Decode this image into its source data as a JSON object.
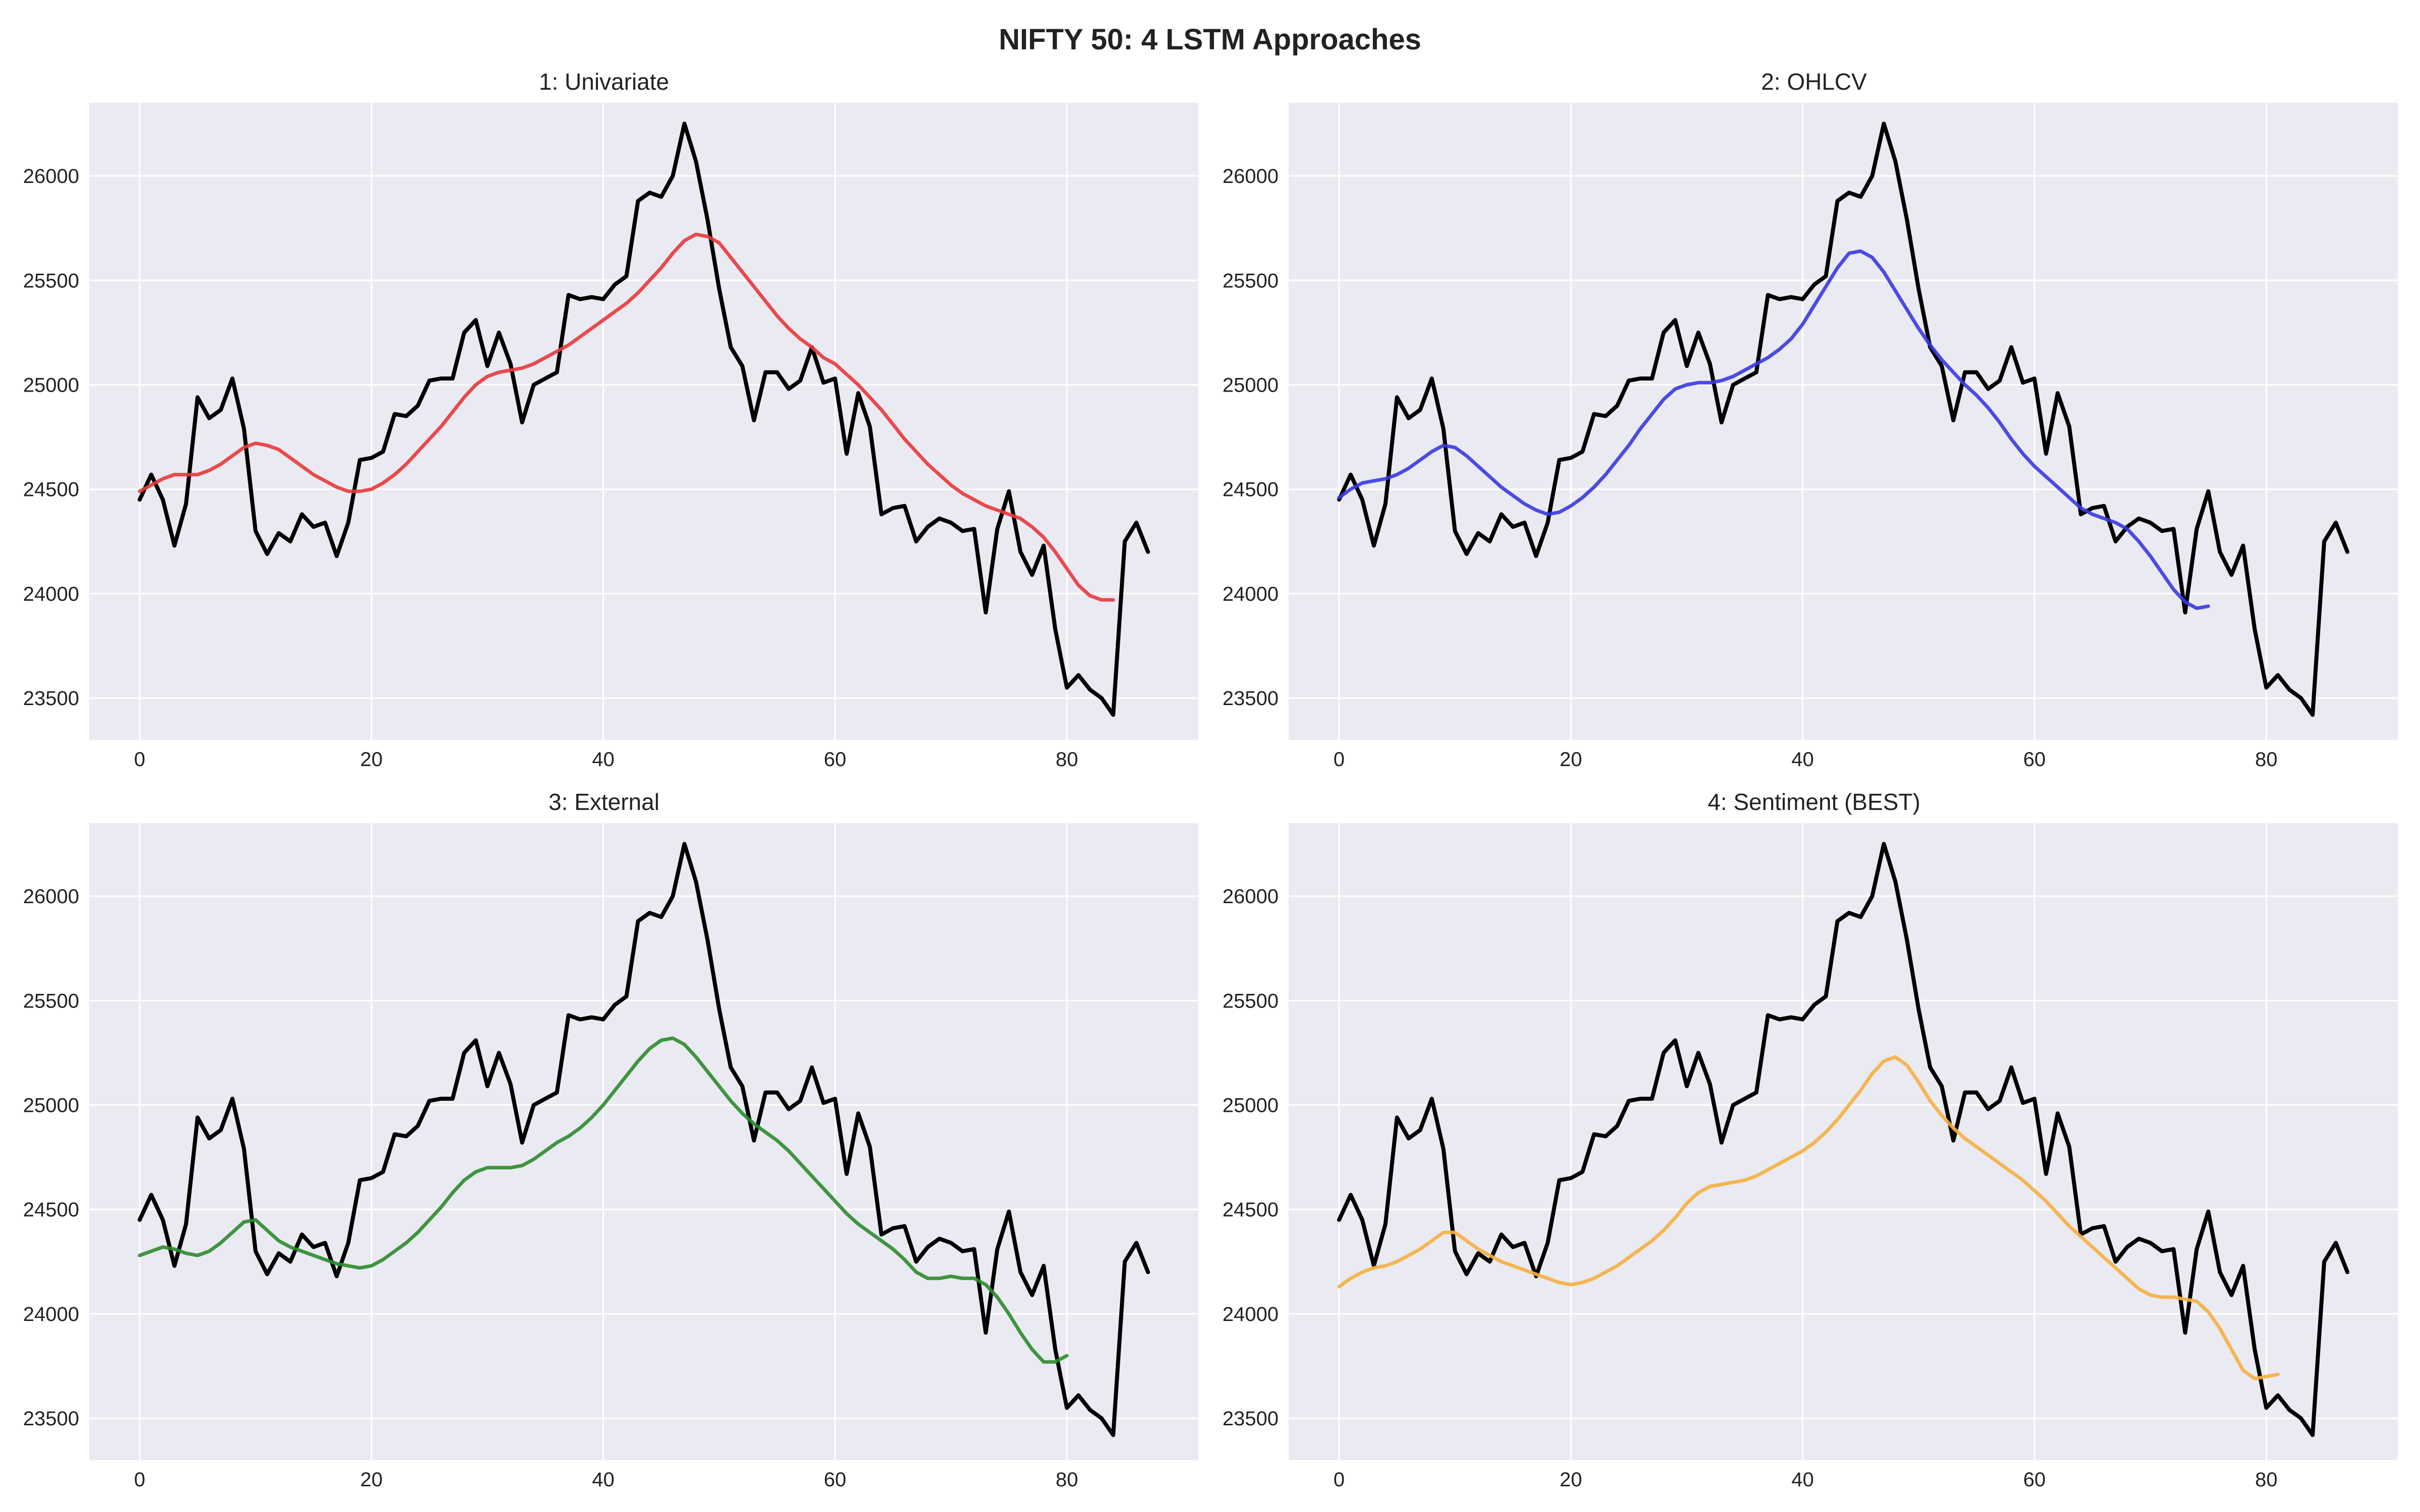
{
  "figure": {
    "title": "NIFTY 50: 4 LSTM Approaches"
  },
  "colors": {
    "panel_bg": "#eaeaf2",
    "grid": "#ffffff",
    "actual": "#000000",
    "best_title": "#008000"
  },
  "chart_data": [
    {
      "type": "line",
      "title": "1: Univariate",
      "title_color": "#222222",
      "xlabel": "",
      "ylabel": "",
      "xlim": [
        -4.35,
        91.35
      ],
      "ylim": [
        23300,
        26350
      ],
      "xticks": [
        0,
        20,
        40,
        60,
        80
      ],
      "yticks": [
        23500,
        24000,
        24500,
        25000,
        25500,
        26000
      ],
      "grid": true,
      "series": [
        {
          "role": "actual",
          "color": "#000000",
          "values": [
            24450,
            24570,
            24450,
            24230,
            24430,
            24940,
            24840,
            24880,
            25030,
            24790,
            24300,
            24190,
            24290,
            24250,
            24380,
            24320,
            24340,
            24180,
            24340,
            24640,
            24650,
            24680,
            24860,
            24850,
            24900,
            25020,
            25030,
            25030,
            25250,
            25310,
            25090,
            25250,
            25100,
            24820,
            25000,
            25030,
            25060,
            25430,
            25410,
            25420,
            25410,
            25480,
            25520,
            25880,
            25920,
            25900,
            26000,
            26250,
            26070,
            25790,
            25460,
            25180,
            25090,
            24830,
            25060,
            25060,
            24980,
            25020,
            25180,
            25010,
            25030,
            24670,
            24960,
            24800,
            24380,
            24410,
            24420,
            24250,
            24320,
            24360,
            24340,
            24300,
            24310,
            23910,
            24310,
            24490,
            24200,
            24090,
            24230,
            23830,
            23550,
            23610,
            23540,
            23500,
            23420,
            24250,
            24340,
            24200
          ]
        },
        {
          "role": "prediction",
          "color": "#e8393b",
          "values": [
            24490,
            24520,
            24550,
            24570,
            24570,
            24570,
            24590,
            24620,
            24660,
            24700,
            24720,
            24710,
            24690,
            24650,
            24610,
            24570,
            24540,
            24510,
            24490,
            24490,
            24500,
            24530,
            24570,
            24620,
            24680,
            24740,
            24800,
            24870,
            24940,
            25000,
            25040,
            25060,
            25070,
            25080,
            25100,
            25130,
            25160,
            25190,
            25230,
            25270,
            25310,
            25350,
            25390,
            25440,
            25500,
            25560,
            25630,
            25690,
            25720,
            25710,
            25680,
            25610,
            25540,
            25470,
            25400,
            25330,
            25270,
            25220,
            25180,
            25130,
            25100,
            25050,
            25000,
            24940,
            24880,
            24810,
            24740,
            24680,
            24620,
            24570,
            24520,
            24480,
            24450,
            24420,
            24400,
            24380,
            24360,
            24320,
            24270,
            24200,
            24120,
            24040,
            23990,
            23970,
            23970
          ]
        }
      ]
    },
    {
      "type": "line",
      "title": "2: OHLCV",
      "title_color": "#222222",
      "xlabel": "",
      "ylabel": "",
      "xlim": [
        -4.35,
        91.35
      ],
      "ylim": [
        23300,
        26350
      ],
      "xticks": [
        0,
        20,
        40,
        60,
        80
      ],
      "yticks": [
        23500,
        24000,
        24500,
        25000,
        25500,
        26000
      ],
      "grid": true,
      "series": [
        {
          "role": "actual",
          "color": "#000000",
          "values": [
            24450,
            24570,
            24450,
            24230,
            24430,
            24940,
            24840,
            24880,
            25030,
            24790,
            24300,
            24190,
            24290,
            24250,
            24380,
            24320,
            24340,
            24180,
            24340,
            24640,
            24650,
            24680,
            24860,
            24850,
            24900,
            25020,
            25030,
            25030,
            25250,
            25310,
            25090,
            25250,
            25100,
            24820,
            25000,
            25030,
            25060,
            25430,
            25410,
            25420,
            25410,
            25480,
            25520,
            25880,
            25920,
            25900,
            26000,
            26250,
            26070,
            25790,
            25460,
            25180,
            25090,
            24830,
            25060,
            25060,
            24980,
            25020,
            25180,
            25010,
            25030,
            24670,
            24960,
            24800,
            24380,
            24410,
            24420,
            24250,
            24320,
            24360,
            24340,
            24300,
            24310,
            23910,
            24310,
            24490,
            24200,
            24090,
            24230,
            23830,
            23550,
            23610,
            23540,
            23500,
            23420,
            24250,
            24340,
            24200
          ]
        },
        {
          "role": "prediction",
          "color": "#3a3ae0",
          "values": [
            24460,
            24500,
            24530,
            24540,
            24550,
            24570,
            24600,
            24640,
            24680,
            24710,
            24700,
            24660,
            24610,
            24560,
            24510,
            24470,
            24430,
            24400,
            24380,
            24390,
            24420,
            24460,
            24510,
            24570,
            24640,
            24710,
            24790,
            24860,
            24930,
            24980,
            25000,
            25010,
            25010,
            25020,
            25040,
            25070,
            25100,
            25130,
            25170,
            25220,
            25290,
            25380,
            25470,
            25560,
            25630,
            25640,
            25610,
            25540,
            25450,
            25360,
            25270,
            25190,
            25120,
            25060,
            25000,
            24950,
            24890,
            24820,
            24740,
            24670,
            24610,
            24560,
            24510,
            24460,
            24410,
            24380,
            24360,
            24340,
            24310,
            24250,
            24180,
            24100,
            24020,
            23960,
            23930,
            23940
          ]
        }
      ]
    },
    {
      "type": "line",
      "title": "3: External",
      "title_color": "#222222",
      "xlabel": "",
      "ylabel": "",
      "xlim": [
        -4.35,
        91.35
      ],
      "ylim": [
        23300,
        26350
      ],
      "xticks": [
        0,
        20,
        40,
        60,
        80
      ],
      "yticks": [
        23500,
        24000,
        24500,
        25000,
        25500,
        26000
      ],
      "grid": true,
      "series": [
        {
          "role": "actual",
          "color": "#000000",
          "values": [
            24450,
            24570,
            24450,
            24230,
            24430,
            24940,
            24840,
            24880,
            25030,
            24790,
            24300,
            24190,
            24290,
            24250,
            24380,
            24320,
            24340,
            24180,
            24340,
            24640,
            24650,
            24680,
            24860,
            24850,
            24900,
            25020,
            25030,
            25030,
            25250,
            25310,
            25090,
            25250,
            25100,
            24820,
            25000,
            25030,
            25060,
            25430,
            25410,
            25420,
            25410,
            25480,
            25520,
            25880,
            25920,
            25900,
            26000,
            26250,
            26070,
            25790,
            25460,
            25180,
            25090,
            24830,
            25060,
            25060,
            24980,
            25020,
            25180,
            25010,
            25030,
            24670,
            24960,
            24800,
            24380,
            24410,
            24420,
            24250,
            24320,
            24360,
            24340,
            24300,
            24310,
            23910,
            24310,
            24490,
            24200,
            24090,
            24230,
            23830,
            23550,
            23610,
            23540,
            23500,
            23420,
            24250,
            24340,
            24200
          ]
        },
        {
          "role": "prediction",
          "color": "#2e8b2e",
          "values": [
            24280,
            24300,
            24320,
            24310,
            24290,
            24280,
            24300,
            24340,
            24390,
            24440,
            24450,
            24400,
            24350,
            24320,
            24300,
            24280,
            24260,
            24240,
            24230,
            24220,
            24230,
            24260,
            24300,
            24340,
            24390,
            24450,
            24510,
            24580,
            24640,
            24680,
            24700,
            24700,
            24700,
            24710,
            24740,
            24780,
            24820,
            24850,
            24890,
            24940,
            25000,
            25070,
            25140,
            25210,
            25270,
            25310,
            25320,
            25290,
            25230,
            25160,
            25090,
            25020,
            24960,
            24910,
            24870,
            24830,
            24780,
            24720,
            24660,
            24600,
            24540,
            24480,
            24430,
            24390,
            24350,
            24310,
            24260,
            24200,
            24170,
            24170,
            24180,
            24170,
            24170,
            24140,
            24080,
            24000,
            23910,
            23830,
            23770,
            23770,
            23800
          ]
        }
      ]
    },
    {
      "type": "line",
      "title": "4: Sentiment (BEST)",
      "title_color": "#008000",
      "xlabel": "",
      "ylabel": "",
      "xlim": [
        -4.35,
        91.35
      ],
      "ylim": [
        23300,
        26350
      ],
      "xticks": [
        0,
        20,
        40,
        60,
        80
      ],
      "yticks": [
        23500,
        24000,
        24500,
        25000,
        25500,
        26000
      ],
      "grid": true,
      "series": [
        {
          "role": "actual",
          "color": "#000000",
          "values": [
            24450,
            24570,
            24450,
            24230,
            24430,
            24940,
            24840,
            24880,
            25030,
            24790,
            24300,
            24190,
            24290,
            24250,
            24380,
            24320,
            24340,
            24180,
            24340,
            24640,
            24650,
            24680,
            24860,
            24850,
            24900,
            25020,
            25030,
            25030,
            25250,
            25310,
            25090,
            25250,
            25100,
            24820,
            25000,
            25030,
            25060,
            25430,
            25410,
            25420,
            25410,
            25480,
            25520,
            25880,
            25920,
            25900,
            26000,
            26250,
            26070,
            25790,
            25460,
            25180,
            25090,
            24830,
            25060,
            25060,
            24980,
            25020,
            25180,
            25010,
            25030,
            24670,
            24960,
            24800,
            24380,
            24410,
            24420,
            24250,
            24320,
            24360,
            24340,
            24300,
            24310,
            23910,
            24310,
            24490,
            24200,
            24090,
            24230,
            23830,
            23550,
            23610,
            23540,
            23500,
            23420,
            24250,
            24340,
            24200
          ]
        },
        {
          "role": "prediction",
          "color": "#f5b041",
          "values": [
            24130,
            24170,
            24200,
            24220,
            24230,
            24250,
            24280,
            24310,
            24350,
            24390,
            24390,
            24350,
            24310,
            24280,
            24250,
            24230,
            24210,
            24190,
            24170,
            24150,
            24140,
            24150,
            24170,
            24200,
            24230,
            24270,
            24310,
            24350,
            24400,
            24460,
            24530,
            24580,
            24610,
            24620,
            24630,
            24640,
            24660,
            24690,
            24720,
            24750,
            24780,
            24820,
            24870,
            24930,
            25000,
            25070,
            25150,
            25210,
            25230,
            25190,
            25110,
            25020,
            24950,
            24890,
            24840,
            24800,
            24760,
            24720,
            24680,
            24640,
            24590,
            24540,
            24480,
            24420,
            24370,
            24320,
            24270,
            24220,
            24170,
            24120,
            24090,
            24080,
            24080,
            24070,
            24060,
            24010,
            23930,
            23830,
            23730,
            23690,
            23700,
            23710
          ]
        }
      ]
    }
  ]
}
